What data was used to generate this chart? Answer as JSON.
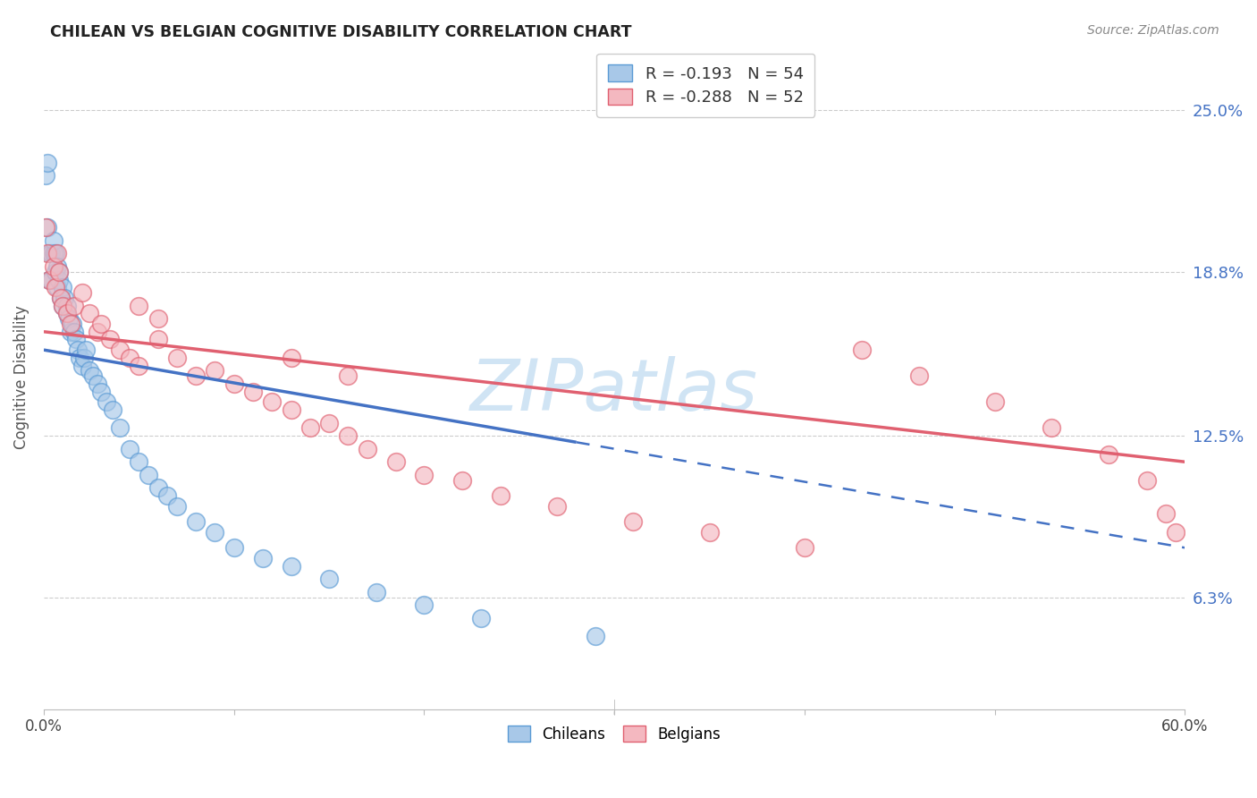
{
  "title": "CHILEAN VS BELGIAN COGNITIVE DISABILITY CORRELATION CHART",
  "source": "Source: ZipAtlas.com",
  "ylabel": "Cognitive Disability",
  "ytick_labels": [
    "6.3%",
    "12.5%",
    "18.8%",
    "25.0%"
  ],
  "ytick_values": [
    0.063,
    0.125,
    0.188,
    0.25
  ],
  "xmin": 0.0,
  "xmax": 0.6,
  "ymin": 0.02,
  "ymax": 0.275,
  "r_chilean": -0.193,
  "n_chilean": 54,
  "r_belgian": -0.288,
  "n_belgian": 52,
  "chilean_color": "#a8c8e8",
  "belgian_color": "#f4b8c0",
  "chilean_edge": "#5b9bd5",
  "belgian_edge": "#e06070",
  "regression_line_color_chilean": "#4472c4",
  "regression_line_color_belgian": "#e06070",
  "watermark": "ZIPatlas",
  "watermark_color": "#d0e4f4",
  "chileans_x": [
    0.001,
    0.002,
    0.002,
    0.003,
    0.003,
    0.004,
    0.004,
    0.005,
    0.005,
    0.006,
    0.006,
    0.007,
    0.007,
    0.008,
    0.008,
    0.009,
    0.01,
    0.01,
    0.011,
    0.012,
    0.012,
    0.013,
    0.014,
    0.015,
    0.016,
    0.017,
    0.018,
    0.019,
    0.02,
    0.021,
    0.022,
    0.024,
    0.026,
    0.028,
    0.03,
    0.033,
    0.036,
    0.04,
    0.045,
    0.05,
    0.055,
    0.06,
    0.065,
    0.07,
    0.08,
    0.09,
    0.1,
    0.115,
    0.13,
    0.15,
    0.175,
    0.2,
    0.23,
    0.29
  ],
  "chileans_y": [
    0.225,
    0.23,
    0.205,
    0.195,
    0.185,
    0.195,
    0.185,
    0.195,
    0.2,
    0.195,
    0.188,
    0.19,
    0.182,
    0.185,
    0.188,
    0.178,
    0.182,
    0.175,
    0.178,
    0.172,
    0.175,
    0.17,
    0.165,
    0.168,
    0.165,
    0.162,
    0.158,
    0.155,
    0.152,
    0.155,
    0.158,
    0.15,
    0.148,
    0.145,
    0.142,
    0.138,
    0.135,
    0.128,
    0.12,
    0.115,
    0.11,
    0.105,
    0.102,
    0.098,
    0.092,
    0.088,
    0.082,
    0.078,
    0.075,
    0.07,
    0.065,
    0.06,
    0.055,
    0.048
  ],
  "belgians_x": [
    0.001,
    0.002,
    0.003,
    0.005,
    0.006,
    0.007,
    0.008,
    0.009,
    0.01,
    0.012,
    0.014,
    0.016,
    0.02,
    0.024,
    0.028,
    0.03,
    0.035,
    0.04,
    0.045,
    0.05,
    0.06,
    0.07,
    0.08,
    0.09,
    0.1,
    0.11,
    0.12,
    0.13,
    0.14,
    0.15,
    0.16,
    0.17,
    0.185,
    0.2,
    0.22,
    0.24,
    0.27,
    0.31,
    0.35,
    0.4,
    0.43,
    0.46,
    0.5,
    0.53,
    0.56,
    0.58,
    0.59,
    0.595,
    0.05,
    0.06,
    0.13,
    0.16
  ],
  "belgians_y": [
    0.205,
    0.195,
    0.185,
    0.19,
    0.182,
    0.195,
    0.188,
    0.178,
    0.175,
    0.172,
    0.168,
    0.175,
    0.18,
    0.172,
    0.165,
    0.168,
    0.162,
    0.158,
    0.155,
    0.152,
    0.162,
    0.155,
    0.148,
    0.15,
    0.145,
    0.142,
    0.138,
    0.135,
    0.128,
    0.13,
    0.125,
    0.12,
    0.115,
    0.11,
    0.108,
    0.102,
    0.098,
    0.092,
    0.088,
    0.082,
    0.158,
    0.148,
    0.138,
    0.128,
    0.118,
    0.108,
    0.095,
    0.088,
    0.175,
    0.17,
    0.155,
    0.148
  ]
}
